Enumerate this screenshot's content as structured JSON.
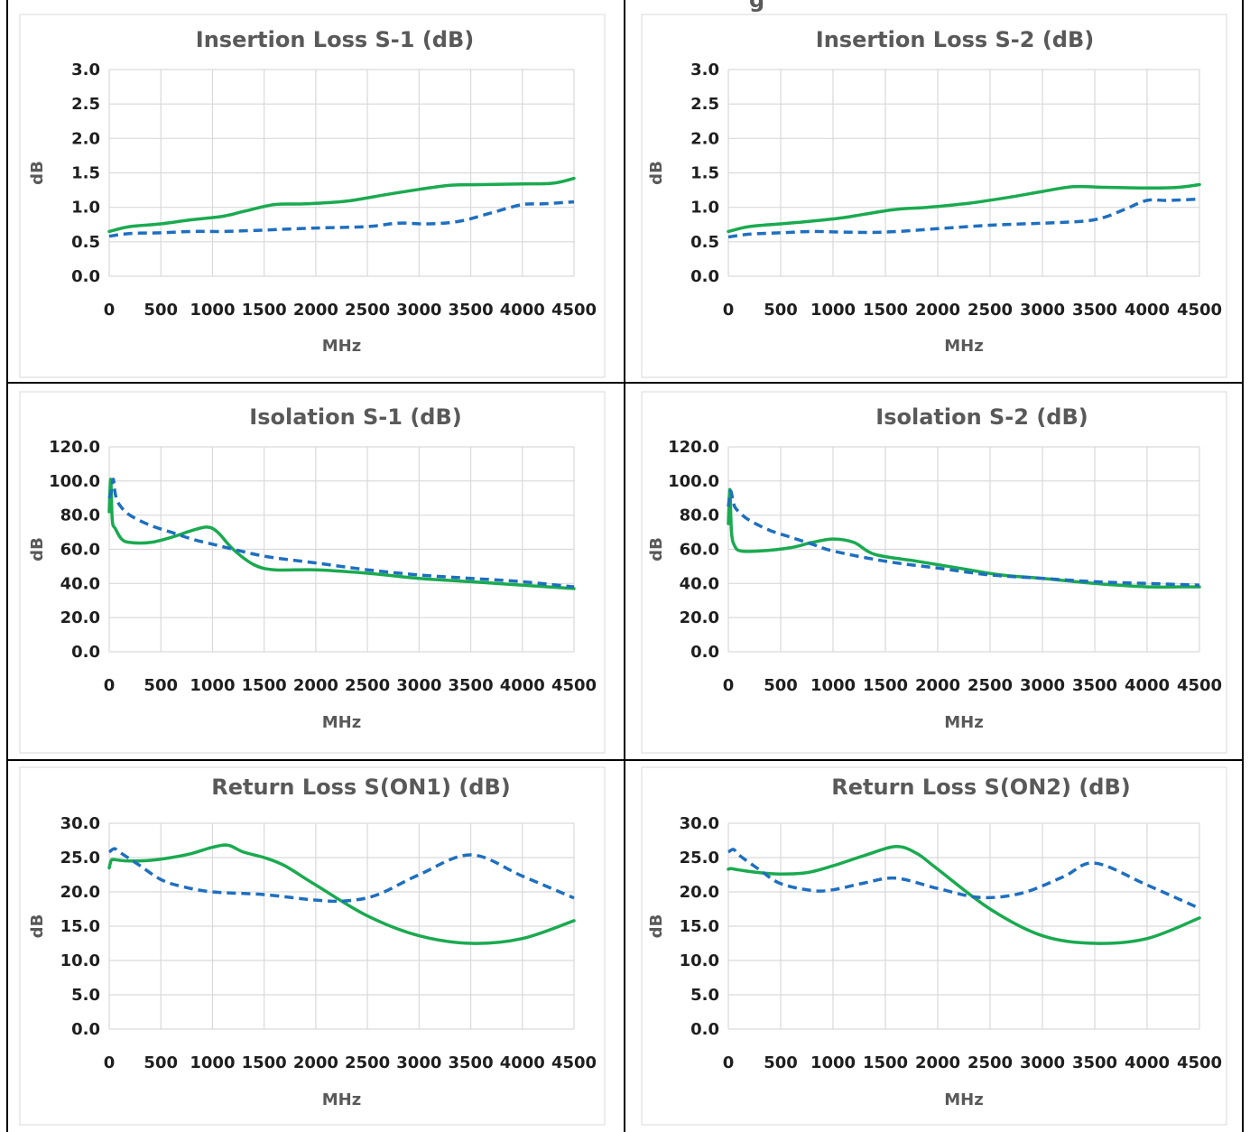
{
  "page_title_fragment": "g",
  "colors": {
    "series_solid": "#1aaa50",
    "series_dashed": "#1f6fbf",
    "gridline": "#d9d9d9",
    "border": "#000000"
  },
  "chart_data": [
    {
      "type": "line",
      "title": "Insertion Loss S-1 (dB)",
      "xlabel": "MHz",
      "ylabel": "dB",
      "xlim": [
        0,
        4500
      ],
      "ylim": [
        0,
        3.0
      ],
      "x_ticks": [
        "0",
        "500",
        "1000",
        "1500",
        "2000",
        "2500",
        "3000",
        "3500",
        "4000",
        "4500"
      ],
      "y_ticks": [
        "0.0",
        "0.5",
        "1.0",
        "1.5",
        "2.0",
        "2.5",
        "3.0"
      ],
      "grid": true,
      "series": [
        {
          "style": "solid",
          "color": "#1aaa50",
          "x": [
            0,
            200,
            500,
            800,
            1100,
            1300,
            1600,
            1900,
            2300,
            2700,
            3000,
            3300,
            3600,
            4000,
            4300,
            4500
          ],
          "y": [
            0.65,
            0.72,
            0.76,
            0.82,
            0.87,
            0.94,
            1.04,
            1.05,
            1.09,
            1.19,
            1.26,
            1.32,
            1.33,
            1.34,
            1.35,
            1.42
          ]
        },
        {
          "style": "dashed",
          "color": "#1f6fbf",
          "x": [
            0,
            200,
            500,
            800,
            1100,
            1500,
            2000,
            2500,
            2800,
            3100,
            3400,
            3700,
            4000,
            4200,
            4500
          ],
          "y": [
            0.58,
            0.62,
            0.63,
            0.65,
            0.65,
            0.67,
            0.7,
            0.72,
            0.77,
            0.76,
            0.8,
            0.92,
            1.04,
            1.05,
            1.08
          ]
        }
      ]
    },
    {
      "type": "line",
      "title": "Insertion Loss S-2 (dB)",
      "xlabel": "MHz",
      "ylabel": "dB",
      "xlim": [
        0,
        4500
      ],
      "ylim": [
        0,
        3.0
      ],
      "x_ticks": [
        "0",
        "500",
        "1000",
        "1500",
        "2000",
        "2500",
        "3000",
        "3500",
        "4000",
        "4500"
      ],
      "y_ticks": [
        "0.0",
        "0.5",
        "1.0",
        "1.5",
        "2.0",
        "2.5",
        "3.0"
      ],
      "grid": true,
      "series": [
        {
          "style": "solid",
          "color": "#1aaa50",
          "x": [
            0,
            200,
            500,
            800,
            1100,
            1300,
            1600,
            1900,
            2300,
            2700,
            3000,
            3300,
            3600,
            4000,
            4300,
            4500
          ],
          "y": [
            0.65,
            0.72,
            0.76,
            0.8,
            0.85,
            0.9,
            0.97,
            1.0,
            1.06,
            1.15,
            1.23,
            1.3,
            1.29,
            1.28,
            1.29,
            1.33
          ]
        },
        {
          "style": "dashed",
          "color": "#1f6fbf",
          "x": [
            0,
            200,
            500,
            800,
            1100,
            1500,
            2000,
            2500,
            3000,
            3400,
            3600,
            3800,
            4000,
            4200,
            4500
          ],
          "y": [
            0.57,
            0.61,
            0.63,
            0.65,
            0.64,
            0.64,
            0.69,
            0.74,
            0.77,
            0.8,
            0.86,
            0.98,
            1.1,
            1.1,
            1.12
          ]
        }
      ]
    },
    {
      "type": "line",
      "title": "Isolation S-1 (dB)",
      "xlabel": "MHz",
      "ylabel": "dB",
      "xlim": [
        0,
        4500
      ],
      "ylim": [
        0,
        120.0
      ],
      "x_ticks": [
        "0",
        "500",
        "1000",
        "1500",
        "2000",
        "2500",
        "3000",
        "3500",
        "4000",
        "4500"
      ],
      "y_ticks": [
        "0.0",
        "20.0",
        "40.0",
        "60.0",
        "80.0",
        "100.0",
        "120.0"
      ],
      "grid": true,
      "series": [
        {
          "style": "solid",
          "color": "#1aaa50",
          "x": [
            0,
            15,
            30,
            60,
            120,
            200,
            400,
            600,
            800,
            950,
            1050,
            1200,
            1400,
            1600,
            2000,
            2500,
            3000,
            3500,
            4000,
            4500
          ],
          "y": [
            82,
            101,
            77,
            72,
            66,
            64,
            64,
            67,
            71,
            73,
            70,
            60,
            51,
            48,
            48,
            46,
            43,
            41,
            39,
            37
          ]
        },
        {
          "style": "dashed",
          "color": "#1f6fbf",
          "x": [
            0,
            20,
            40,
            60,
            100,
            200,
            400,
            600,
            800,
            1000,
            1500,
            2000,
            2500,
            3000,
            3500,
            4000,
            4500
          ],
          "y": [
            90,
            94,
            101,
            92,
            86,
            80,
            74,
            70,
            66,
            63,
            56,
            52,
            48,
            45,
            43,
            41,
            38
          ]
        }
      ]
    },
    {
      "type": "line",
      "title": "Isolation S-2 (dB)",
      "xlabel": "MHz",
      "ylabel": "dB",
      "xlim": [
        0,
        4500
      ],
      "ylim": [
        0,
        120.0
      ],
      "x_ticks": [
        "0",
        "500",
        "1000",
        "1500",
        "2000",
        "2500",
        "3000",
        "3500",
        "4000",
        "4500"
      ],
      "y_ticks": [
        "0.0",
        "20.0",
        "40.0",
        "60.0",
        "80.0",
        "100.0",
        "120.0"
      ],
      "grid": true,
      "series": [
        {
          "style": "solid",
          "color": "#1aaa50",
          "x": [
            0,
            15,
            30,
            60,
            120,
            300,
            600,
            800,
            1000,
            1200,
            1400,
            1800,
            2200,
            2600,
            3000,
            3500,
            4000,
            4300,
            4500
          ],
          "y": [
            75,
            95,
            70,
            62,
            59,
            59,
            61,
            64,
            66,
            64,
            57,
            53,
            49,
            45,
            43,
            40,
            38,
            38,
            38
          ]
        },
        {
          "style": "dashed",
          "color": "#1f6fbf",
          "x": [
            0,
            20,
            40,
            60,
            100,
            200,
            400,
            600,
            800,
            1000,
            1500,
            2000,
            2500,
            3000,
            3500,
            4000,
            4500
          ],
          "y": [
            85,
            94,
            90,
            85,
            82,
            77,
            71,
            67,
            63,
            59,
            53,
            49,
            45,
            43,
            41,
            40,
            39
          ]
        }
      ]
    },
    {
      "type": "line",
      "title": "Return Loss S(ON1) (dB)",
      "xlabel": "MHz",
      "ylabel": "dB",
      "xlim": [
        0,
        4500
      ],
      "ylim": [
        0,
        30.0
      ],
      "x_ticks": [
        "0",
        "500",
        "1000",
        "1500",
        "2000",
        "2500",
        "3000",
        "3500",
        "4000",
        "4500"
      ],
      "y_ticks": [
        "0.0",
        "5.0",
        "10.0",
        "15.0",
        "20.0",
        "25.0",
        "30.0"
      ],
      "grid": true,
      "series": [
        {
          "style": "solid",
          "color": "#1aaa50",
          "x": [
            0,
            20,
            50,
            100,
            200,
            400,
            600,
            800,
            1000,
            1150,
            1300,
            1500,
            1700,
            2000,
            2500,
            3000,
            3500,
            4000,
            4500
          ],
          "y": [
            23.5,
            24.6,
            24.7,
            24.6,
            24.5,
            24.6,
            25.0,
            25.6,
            26.5,
            26.8,
            25.8,
            25.0,
            23.8,
            21.0,
            16.5,
            13.6,
            12.5,
            13.2,
            15.8
          ]
        },
        {
          "style": "dashed",
          "color": "#1f6fbf",
          "x": [
            0,
            50,
            100,
            300,
            500,
            700,
            1000,
            1500,
            2000,
            2300,
            2600,
            3000,
            3500,
            4000,
            4500
          ],
          "y": [
            25.8,
            26.3,
            25.8,
            23.8,
            21.8,
            20.8,
            20.0,
            19.6,
            18.8,
            18.7,
            19.6,
            22.5,
            25.4,
            22.3,
            19.1
          ]
        }
      ]
    },
    {
      "type": "line",
      "title": "Return Loss S(ON2) (dB)",
      "xlabel": "MHz",
      "ylabel": "dB",
      "xlim": [
        0,
        4500
      ],
      "ylim": [
        0,
        30.0
      ],
      "x_ticks": [
        "0",
        "500",
        "1000",
        "1500",
        "2000",
        "2500",
        "3000",
        "3500",
        "4000",
        "4500"
      ],
      "y_ticks": [
        "0.0",
        "5.0",
        "10.0",
        "15.0",
        "20.0",
        "25.0",
        "30.0"
      ],
      "grid": true,
      "series": [
        {
          "style": "solid",
          "color": "#1aaa50",
          "x": [
            0,
            30,
            100,
            300,
            500,
            750,
            1000,
            1300,
            1600,
            1800,
            2000,
            2500,
            3000,
            3500,
            4000,
            4500
          ],
          "y": [
            23.3,
            23.4,
            23.2,
            22.8,
            22.6,
            22.8,
            23.8,
            25.3,
            26.6,
            25.6,
            23.3,
            17.5,
            13.6,
            12.5,
            13.2,
            16.2
          ]
        },
        {
          "style": "dashed",
          "color": "#1f6fbf",
          "x": [
            0,
            50,
            100,
            300,
            500,
            800,
            1000,
            1300,
            1600,
            2000,
            2400,
            2800,
            3200,
            3500,
            4000,
            4500
          ],
          "y": [
            25.8,
            26.2,
            25.4,
            23.2,
            21.2,
            20.2,
            20.3,
            21.3,
            22.0,
            20.5,
            19.2,
            19.8,
            22.2,
            24.2,
            21.0,
            17.6
          ]
        }
      ]
    }
  ]
}
